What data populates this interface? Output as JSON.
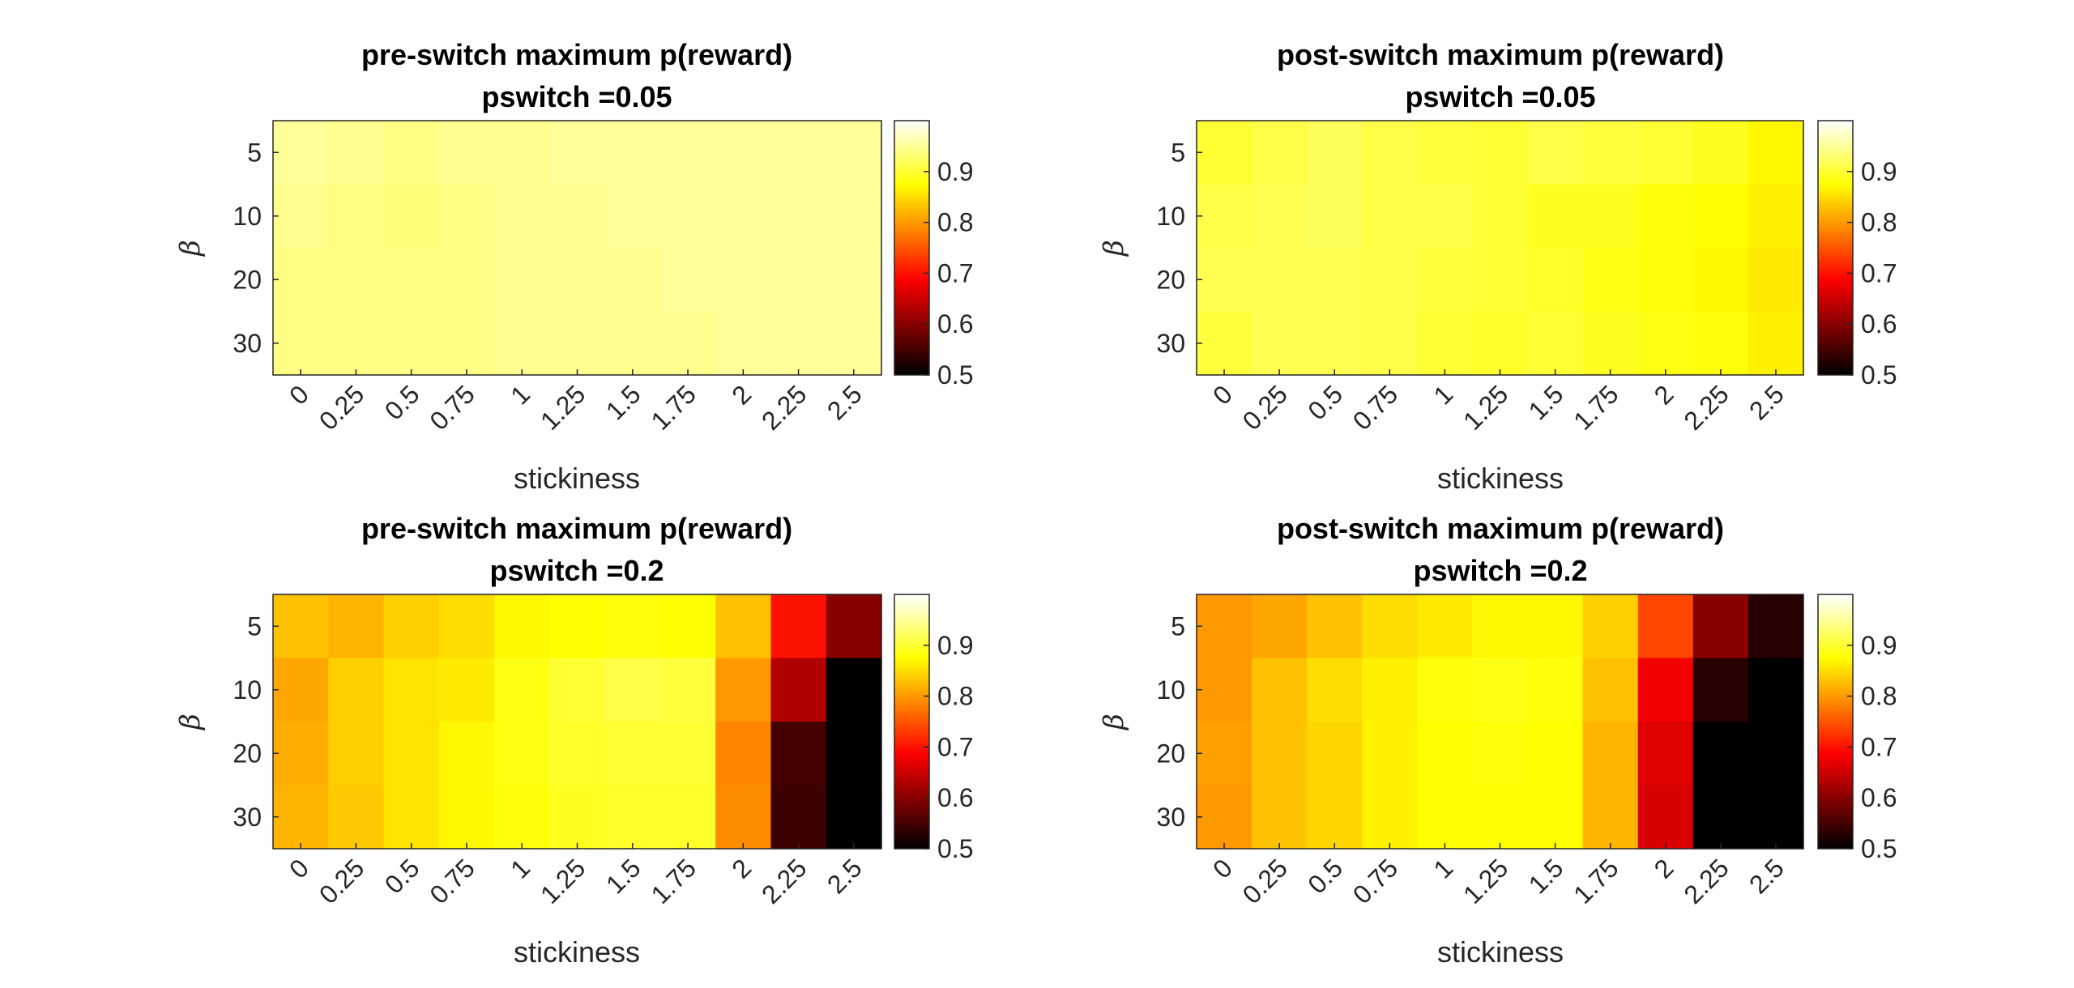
{
  "chart_data": [
    {
      "type": "heatmap",
      "title": "pre-switch maximum p(reward)",
      "subtitle": "pswitch =0.05",
      "xlabel": "stickiness",
      "ylabel": "β",
      "x_categories": [
        "0",
        "0.25",
        "0.5",
        "0.75",
        "1",
        "1.25",
        "1.5",
        "1.75",
        "2",
        "2.25",
        "2.5"
      ],
      "y_categories": [
        "5",
        "10",
        "20",
        "30"
      ],
      "colormap": "hot",
      "clim": [
        0.5,
        1.0
      ],
      "colorbar_ticks": [
        "0.5",
        "0.6",
        "0.7",
        "0.8",
        "0.9"
      ],
      "values": [
        [
          0.95,
          0.945,
          0.94,
          0.945,
          0.945,
          0.95,
          0.95,
          0.95,
          0.95,
          0.95,
          0.95
        ],
        [
          0.945,
          0.94,
          0.935,
          0.94,
          0.945,
          0.945,
          0.95,
          0.95,
          0.95,
          0.95,
          0.95
        ],
        [
          0.94,
          0.94,
          0.94,
          0.94,
          0.945,
          0.945,
          0.945,
          0.95,
          0.95,
          0.95,
          0.95
        ],
        [
          0.94,
          0.94,
          0.94,
          0.94,
          0.945,
          0.945,
          0.945,
          0.945,
          0.95,
          0.95,
          0.95
        ]
      ]
    },
    {
      "type": "heatmap",
      "title": "post-switch maximum p(reward)",
      "subtitle": "pswitch =0.05",
      "xlabel": "stickiness",
      "ylabel": "β",
      "x_categories": [
        "0",
        "0.25",
        "0.5",
        "0.75",
        "1",
        "1.25",
        "1.5",
        "1.75",
        "2",
        "2.25",
        "2.5"
      ],
      "y_categories": [
        "5",
        "10",
        "20",
        "30"
      ],
      "colormap": "hot",
      "clim": [
        0.5,
        1.0
      ],
      "colorbar_ticks": [
        "0.5",
        "0.6",
        "0.7",
        "0.8",
        "0.9"
      ],
      "values": [
        [
          0.9,
          0.91,
          0.92,
          0.91,
          0.905,
          0.9,
          0.91,
          0.905,
          0.9,
          0.89,
          0.87
        ],
        [
          0.91,
          0.915,
          0.92,
          0.91,
          0.91,
          0.9,
          0.89,
          0.89,
          0.88,
          0.875,
          0.865
        ],
        [
          0.915,
          0.915,
          0.915,
          0.91,
          0.905,
          0.9,
          0.895,
          0.885,
          0.88,
          0.87,
          0.86
        ],
        [
          0.905,
          0.915,
          0.915,
          0.91,
          0.9,
          0.895,
          0.9,
          0.89,
          0.885,
          0.88,
          0.865
        ]
      ]
    },
    {
      "type": "heatmap",
      "title": "pre-switch maximum p(reward)",
      "subtitle": "pswitch =0.2",
      "xlabel": "stickiness",
      "ylabel": "β",
      "x_categories": [
        "0",
        "0.25",
        "0.5",
        "0.75",
        "1",
        "1.25",
        "1.5",
        "1.75",
        "2",
        "2.25",
        "2.5"
      ],
      "y_categories": [
        "5",
        "10",
        "20",
        "30"
      ],
      "colormap": "hot",
      "clim": [
        0.5,
        1.0
      ],
      "colorbar_ticks": [
        "0.5",
        "0.6",
        "0.7",
        "0.8",
        "0.9"
      ],
      "values": [
        [
          0.83,
          0.82,
          0.84,
          0.85,
          0.87,
          0.875,
          0.88,
          0.875,
          0.83,
          0.7,
          0.6
        ],
        [
          0.81,
          0.84,
          0.855,
          0.86,
          0.885,
          0.9,
          0.91,
          0.905,
          0.8,
          0.63,
          0.5
        ],
        [
          0.815,
          0.84,
          0.855,
          0.87,
          0.885,
          0.895,
          0.9,
          0.9,
          0.785,
          0.55,
          0.5
        ],
        [
          0.82,
          0.835,
          0.855,
          0.87,
          0.88,
          0.89,
          0.895,
          0.895,
          0.79,
          0.545,
          0.5
        ]
      ]
    },
    {
      "type": "heatmap",
      "title": "post-switch maximum p(reward)",
      "subtitle": "pswitch =0.2",
      "xlabel": "stickiness",
      "ylabel": "β",
      "x_categories": [
        "0",
        "0.25",
        "0.5",
        "0.75",
        "1",
        "1.25",
        "1.5",
        "1.75",
        "2",
        "2.25",
        "2.5"
      ],
      "y_categories": [
        "5",
        "10",
        "20",
        "30"
      ],
      "colormap": "hot",
      "clim": [
        0.5,
        1.0
      ],
      "colorbar_ticks": [
        "0.5",
        "0.6",
        "0.7",
        "0.8",
        "0.9"
      ],
      "values": [
        [
          0.8,
          0.81,
          0.83,
          0.85,
          0.86,
          0.87,
          0.87,
          0.84,
          0.74,
          0.6,
          0.53
        ],
        [
          0.8,
          0.83,
          0.85,
          0.865,
          0.88,
          0.885,
          0.88,
          0.83,
          0.68,
          0.53,
          0.5
        ],
        [
          0.805,
          0.83,
          0.845,
          0.865,
          0.875,
          0.88,
          0.875,
          0.82,
          0.665,
          0.5,
          0.5
        ],
        [
          0.8,
          0.83,
          0.845,
          0.865,
          0.875,
          0.875,
          0.875,
          0.82,
          0.66,
          0.5,
          0.5
        ]
      ]
    }
  ]
}
